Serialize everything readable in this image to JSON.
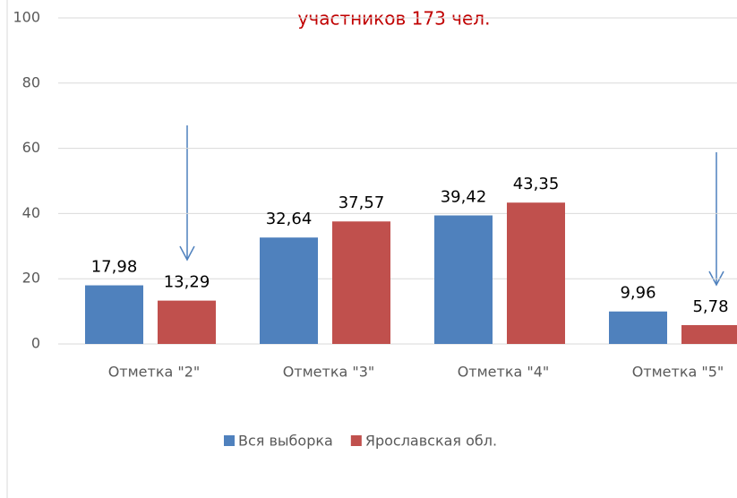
{
  "chart_data": {
    "type": "bar",
    "title": "участников 173 чел.",
    "categories": [
      "Отметка \"2\"",
      "Отметка \"3\"",
      "Отметка \"4\"",
      "Отметка \"5\""
    ],
    "series": [
      {
        "name": "Вся выборка",
        "color": "#4f81bd",
        "values": [
          17.98,
          32.64,
          39.42,
          9.96
        ],
        "value_labels": [
          "17,98",
          "32,64",
          "39,42",
          "9,96"
        ]
      },
      {
        "name": "Ярославская обл.",
        "color": "#c0504d",
        "values": [
          13.29,
          37.57,
          43.35,
          5.78
        ],
        "value_labels": [
          "13,29",
          "37,57",
          "43,35",
          "5,78"
        ]
      }
    ],
    "ylim": [
      0,
      100
    ],
    "yticks": [
      0,
      20,
      40,
      60,
      80,
      100
    ],
    "grid": true,
    "legend": "bottom"
  }
}
